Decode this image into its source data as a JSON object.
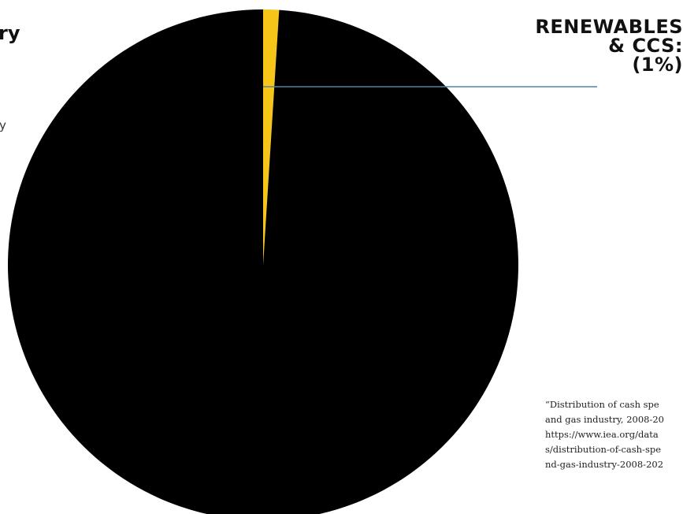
{
  "chart_data": {
    "type": "pie",
    "slices": [
      {
        "label": "Renewables & CCS",
        "value": 1,
        "color": "#f5c518"
      },
      {
        "label": "",
        "value": 99,
        "color": "#000000"
      }
    ],
    "annotations": {
      "callout_lines": [
        "RENEWABLES",
        "& CCS:",
        "(1%)"
      ],
      "leader_color": "#4f86a3"
    }
  },
  "fragments": {
    "left_top": "ry",
    "left_mid": "y"
  },
  "source": {
    "lines": [
      "“Distribution of cash spe",
      "and gas industry, 2008-20",
      "https://www.iea.org/data",
      "s/distribution-of-cash-spe",
      "nd-gas-industry-2008-202"
    ]
  }
}
